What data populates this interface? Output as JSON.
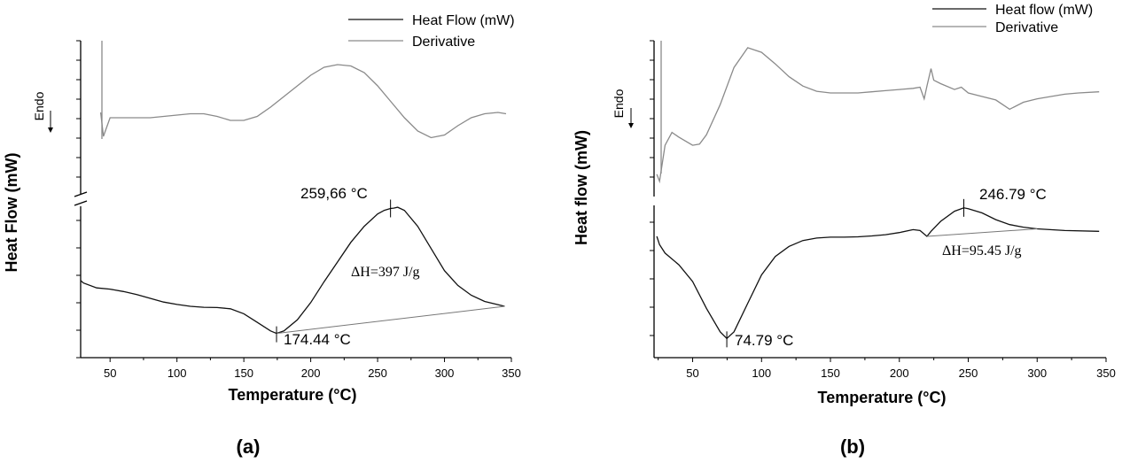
{
  "chart_data": [
    {
      "type": "line",
      "panel_label": "(a)",
      "xlabel": "Temperature (°C)",
      "ylabel": "Heat Flow (mW)",
      "xlim": [
        28,
        350
      ],
      "xticks": [
        50,
        100,
        150,
        200,
        250,
        300,
        350
      ],
      "endo_label": "Endo",
      "legend": {
        "placement": "top-right",
        "entries": [
          "Heat Flow (mW)",
          "Derivative"
        ]
      },
      "series": [
        {
          "name": "Derivative",
          "x": [
            43,
            45,
            50,
            60,
            70,
            80,
            90,
            100,
            110,
            120,
            130,
            140,
            150,
            160,
            170,
            180,
            190,
            200,
            210,
            220,
            230,
            240,
            250,
            260,
            270,
            280,
            290,
            300,
            310,
            320,
            330,
            340,
            346
          ],
          "y": [
            1.6,
            0.7,
            1.4,
            1.4,
            1.4,
            1.4,
            1.45,
            1.5,
            1.55,
            1.55,
            1.45,
            1.3,
            1.3,
            1.45,
            1.8,
            2.2,
            2.6,
            3.0,
            3.3,
            3.4,
            3.35,
            3.1,
            2.6,
            2.0,
            1.4,
            0.9,
            0.65,
            0.75,
            1.1,
            1.4,
            1.55,
            1.6,
            1.55
          ]
        },
        {
          "name": "Heat Flow (mW)",
          "x": [
            28,
            30,
            40,
            50,
            60,
            70,
            80,
            90,
            100,
            110,
            120,
            130,
            140,
            150,
            160,
            170,
            174.44,
            180,
            190,
            200,
            210,
            220,
            230,
            240,
            250,
            255,
            259.66,
            262,
            265,
            270,
            280,
            290,
            300,
            310,
            320,
            330,
            345
          ],
          "y": [
            -3.2,
            -3.6,
            -4.4,
            -4.6,
            -5.0,
            -5.5,
            -6.1,
            -6.7,
            -7.1,
            -7.4,
            -7.55,
            -7.6,
            -7.8,
            -8.6,
            -10.0,
            -11.4,
            -11.8,
            -11.4,
            -9.6,
            -6.8,
            -3.4,
            -0.2,
            3.0,
            5.6,
            7.6,
            8.2,
            8.5,
            8.55,
            8.7,
            8.2,
            5.6,
            2.0,
            -1.6,
            -4.0,
            -5.6,
            -6.6,
            -7.4
          ]
        }
      ],
      "annotations": {
        "peak_max": {
          "x": 259.66,
          "y": 8.5,
          "label": "259,66 °C"
        },
        "peak_min": {
          "x": 174.44,
          "y": -11.8,
          "label": "174.44 °C"
        },
        "enthalpy": {
          "label": "ΔH=397 J/g"
        },
        "baseline": {
          "from": [
            174.44,
            -11.8
          ],
          "to": [
            345,
            -7.4
          ]
        }
      }
    },
    {
      "type": "line",
      "panel_label": "(b)",
      "xlabel": "Temperature (°C)",
      "ylabel": "Heat flow (mW)",
      "xlim": [
        22,
        350
      ],
      "xticks": [
        50,
        100,
        150,
        200,
        250,
        300,
        350
      ],
      "endo_label": "Endo",
      "legend": {
        "placement": "top-right",
        "entries": [
          "Heat flow (mW)",
          "Derivative"
        ]
      },
      "series": [
        {
          "name": "Derivative",
          "x": [
            24,
            26,
            30,
            35,
            40,
            50,
            55,
            60,
            70,
            80,
            90,
            100,
            110,
            120,
            130,
            140,
            150,
            160,
            170,
            180,
            190,
            200,
            210,
            215,
            218,
            220,
            223,
            225,
            230,
            240,
            245,
            250,
            260,
            270,
            280,
            290,
            300,
            310,
            320,
            330,
            345
          ],
          "y": [
            -3.0,
            -3.6,
            -0.5,
            0.6,
            0.2,
            -0.5,
            -0.4,
            0.4,
            3.0,
            6.2,
            7.9,
            7.5,
            6.5,
            5.4,
            4.6,
            4.15,
            4.0,
            4.0,
            4.0,
            4.1,
            4.2,
            4.3,
            4.4,
            4.5,
            3.5,
            4.6,
            6.1,
            5.1,
            4.8,
            4.3,
            4.5,
            4.0,
            3.7,
            3.4,
            2.6,
            3.2,
            3.5,
            3.7,
            3.9,
            4.0,
            4.1
          ]
        },
        {
          "name": "Heat flow (mW)",
          "x": [
            24,
            26,
            30,
            40,
            50,
            60,
            70,
            74.79,
            80,
            90,
            100,
            110,
            120,
            130,
            140,
            150,
            160,
            170,
            180,
            190,
            200,
            210,
            215,
            220,
            223,
            230,
            240,
            246.79,
            250,
            260,
            270,
            280,
            290,
            300,
            320,
            345
          ],
          "y": [
            -0.2,
            -1.2,
            -2.2,
            -3.6,
            -5.6,
            -8.8,
            -11.6,
            -12.4,
            -11.6,
            -8.2,
            -4.8,
            -2.6,
            -1.4,
            -0.7,
            -0.4,
            -0.3,
            -0.3,
            -0.25,
            -0.15,
            0.0,
            0.25,
            0.6,
            0.5,
            -0.2,
            0.4,
            1.6,
            2.8,
            3.2,
            3.1,
            2.6,
            1.8,
            1.2,
            0.9,
            0.7,
            0.5,
            0.4
          ]
        }
      ],
      "annotations": {
        "peak_max": {
          "x": 246.79,
          "y": 3.2,
          "label": "246.79 °C"
        },
        "peak_min": {
          "x": 74.79,
          "y": -12.4,
          "label": "74.79 °C"
        },
        "enthalpy": {
          "label": "ΔH=95.45 J/g"
        },
        "baseline": {
          "from": [
            220,
            -0.2
          ],
          "to": [
            300,
            0.7
          ]
        }
      }
    }
  ]
}
